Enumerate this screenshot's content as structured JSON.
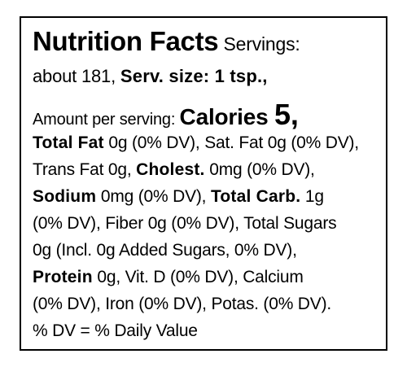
{
  "label": {
    "title": "Nutrition Facts",
    "servings_text": " Servings:",
    "servings_count": "about 181, ",
    "serving_size": "Serv. size: 1 tsp.,",
    "amount_per_serving": "Amount per serving: ",
    "calories_label": "Calories ",
    "calories_value": "5,",
    "total_fat_label": "Total Fat",
    "total_fat_value": " 0g (0% DV), Sat. Fat 0g (0% DV),",
    "trans_fat_value": "Trans Fat 0g, ",
    "cholest_label": "Cholest.",
    "cholest_value": " 0mg (0% DV),",
    "sodium_label": "Sodium",
    "sodium_value": " 0mg (0% DV), ",
    "carb_label": "Total Carb.",
    "carb_value": " 1g",
    "line_fiber": "(0% DV), Fiber 0g (0% DV), Total Sugars",
    "line_added_sugars": "0g (Incl. 0g Added Sugars, 0% DV),",
    "protein_label": "Protein",
    "protein_value": " 0g, Vit. D (0% DV), Calcium",
    "line_minerals": "(0% DV), Iron (0% DV), Potas. (0% DV).",
    "footnote": "% DV = % Daily Value"
  }
}
